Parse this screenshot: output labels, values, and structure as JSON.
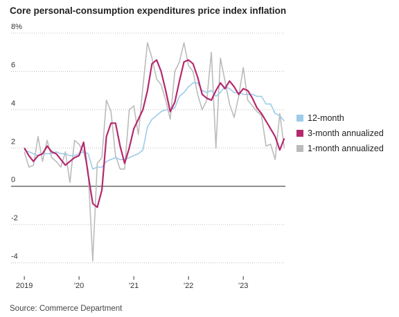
{
  "chart_data": {
    "type": "line",
    "title": "Core personal-consumption expenditures price index inflation",
    "source": "Source: Commerce Department",
    "x": [
      2019,
      2019.083,
      2019.167,
      2019.25,
      2019.333,
      2019.417,
      2019.5,
      2019.583,
      2019.667,
      2019.75,
      2019.833,
      2019.917,
      2020,
      2020.083,
      2020.167,
      2020.25,
      2020.333,
      2020.417,
      2020.5,
      2020.583,
      2020.667,
      2020.75,
      2020.833,
      2020.917,
      2021,
      2021.083,
      2021.167,
      2021.25,
      2021.333,
      2021.417,
      2021.5,
      2021.583,
      2021.667,
      2021.75,
      2021.833,
      2021.917,
      2022,
      2022.083,
      2022.167,
      2022.25,
      2022.333,
      2022.417,
      2022.5,
      2022.583,
      2022.667,
      2022.75,
      2022.833,
      2022.917,
      2023,
      2023.083,
      2023.167,
      2023.25,
      2023.333,
      2023.417,
      2023.5,
      2023.583,
      2023.667,
      2023.75
    ],
    "series": [
      {
        "name": "12-month",
        "color": "#9dcbea",
        "values": [
          1.9,
          1.8,
          1.7,
          1.6,
          1.7,
          1.7,
          1.7,
          1.8,
          1.7,
          1.7,
          1.6,
          1.6,
          1.7,
          1.8,
          1.7,
          0.9,
          1.0,
          1.0,
          1.3,
          1.4,
          1.5,
          1.4,
          1.4,
          1.5,
          1.6,
          1.7,
          1.9,
          3.1,
          3.5,
          3.7,
          3.9,
          4.0,
          4.0,
          4.1,
          4.7,
          4.9,
          5.2,
          5.4,
          5.4,
          5.0,
          4.9,
          5.0,
          4.7,
          4.9,
          5.2,
          5.1,
          4.9,
          4.9,
          4.8,
          4.8,
          4.8,
          4.7,
          4.7,
          4.3,
          4.3,
          3.8,
          3.7,
          3.4
        ]
      },
      {
        "name": "3-month annualized",
        "color": "#b5286e",
        "values": [
          2.0,
          1.6,
          1.3,
          1.6,
          1.7,
          2.1,
          1.8,
          1.7,
          1.4,
          1.1,
          1.3,
          1.5,
          1.6,
          2.3,
          0.6,
          -0.9,
          -1.1,
          -0.2,
          2.6,
          3.3,
          3.3,
          2.1,
          1.2,
          2.0,
          3.0,
          3.5,
          4.0,
          5.0,
          6.4,
          6.6,
          6.0,
          5.0,
          3.9,
          4.4,
          5.5,
          6.5,
          6.6,
          6.4,
          5.7,
          4.8,
          4.6,
          4.5,
          5.0,
          5.4,
          5.1,
          5.5,
          5.2,
          4.8,
          5.1,
          5.0,
          4.6,
          4.1,
          3.8,
          3.4,
          3.0,
          2.6,
          1.9,
          2.5
        ]
      },
      {
        "name": "1-month annualized",
        "color": "#bbbbbb",
        "values": [
          1.8,
          1.0,
          1.1,
          2.6,
          1.3,
          2.4,
          1.5,
          1.3,
          1.0,
          1.8,
          0.2,
          2.4,
          2.2,
          1.8,
          0.8,
          -3.9,
          1.2,
          1.5,
          4.5,
          3.9,
          1.6,
          0.9,
          0.9,
          4.0,
          4.2,
          2.7,
          5.2,
          7.5,
          6.7,
          5.6,
          5.3,
          4.5,
          3.5,
          6.0,
          6.5,
          7.5,
          6.3,
          6.0,
          4.8,
          4.0,
          4.5,
          7.0,
          2.0,
          6.7,
          5.5,
          4.3,
          3.6,
          4.7,
          6.2,
          4.5,
          4.2,
          3.9,
          3.7,
          2.1,
          2.2,
          1.4,
          3.8,
          2.0
        ]
      }
    ],
    "xlim": [
      2018.91,
      2023.77
    ],
    "xticks": [
      {
        "value": 2019,
        "label": "2019"
      },
      {
        "value": 2020,
        "label": "'20"
      },
      {
        "value": 2021,
        "label": "'21"
      },
      {
        "value": 2022,
        "label": "'22"
      },
      {
        "value": 2023,
        "label": "'23"
      }
    ],
    "ylim": [
      -4.7,
      8
    ],
    "yticks": [
      {
        "value": 8,
        "label": "8%"
      },
      6,
      4,
      2,
      0,
      -2,
      -4
    ],
    "grid": true,
    "legend": "right"
  }
}
